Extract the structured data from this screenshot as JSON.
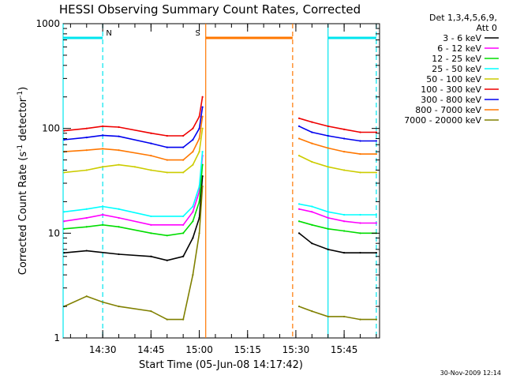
{
  "chart_data": {
    "type": "line",
    "title": "HESSI Observing Summary Count Rates, Corrected",
    "xlabel": "Start Time (05-Jun-08 14:17:42)",
    "ylabel": "Corrected Count Rate (s⁻¹ detector⁻¹)",
    "ylabel_parts": {
      "main": "Corrected Count Rate (s",
      "sup1": "-1",
      "mid": " detector",
      "sup2": "-1",
      "end": ")"
    },
    "yscale": "log",
    "xlim": [
      "14:17:42",
      "15:56:00"
    ],
    "ylim": [
      1,
      1000
    ],
    "xticks": [
      "14:30",
      "14:45",
      "15:00",
      "15:15",
      "15:30",
      "15:45"
    ],
    "yticks": [
      "1",
      "10",
      "100",
      "1000"
    ],
    "legend_header": [
      "Det 1,3,4,5,6,9,",
      "Att 0"
    ],
    "legend_position": "right",
    "series": [
      {
        "name": "3 - 6 keV",
        "color": "#000000",
        "points": [
          [
            "14:18",
            6.5
          ],
          [
            "14:25",
            6.8
          ],
          [
            "14:35",
            6.3
          ],
          [
            "14:45",
            6.0
          ],
          [
            "14:50",
            5.5
          ],
          [
            "14:55",
            6.0
          ],
          [
            "14:58",
            9
          ],
          [
            "15:00",
            14
          ],
          [
            "15:01",
            35
          ]
        ],
        "points2": [
          [
            "15:31",
            10
          ],
          [
            "15:35",
            8
          ],
          [
            "15:40",
            7
          ],
          [
            "15:45",
            6.5
          ],
          [
            "15:50",
            6.5
          ],
          [
            "15:55",
            6.5
          ]
        ]
      },
      {
        "name": "6 - 12 keV",
        "color": "#ff00ff",
        "points": [
          [
            "14:18",
            13
          ],
          [
            "14:25",
            14
          ],
          [
            "14:30",
            15
          ],
          [
            "14:35",
            14
          ],
          [
            "14:45",
            12
          ],
          [
            "14:55",
            12
          ],
          [
            "14:58",
            16
          ],
          [
            "15:00",
            25
          ],
          [
            "15:01",
            55
          ]
        ],
        "points2": [
          [
            "15:31",
            17
          ],
          [
            "15:35",
            16
          ],
          [
            "15:40",
            14
          ],
          [
            "15:45",
            13
          ],
          [
            "15:50",
            12.5
          ],
          [
            "15:55",
            12.5
          ]
        ]
      },
      {
        "name": "12 - 25 keV",
        "color": "#00dd00",
        "points": [
          [
            "14:18",
            11
          ],
          [
            "14:25",
            11.5
          ],
          [
            "14:30",
            12
          ],
          [
            "14:35",
            11.5
          ],
          [
            "14:45",
            10
          ],
          [
            "14:50",
            9.5
          ],
          [
            "14:55",
            10
          ],
          [
            "14:58",
            13
          ],
          [
            "15:00",
            20
          ],
          [
            "15:01",
            45
          ]
        ],
        "points2": [
          [
            "15:31",
            13
          ],
          [
            "15:35",
            12
          ],
          [
            "15:40",
            11
          ],
          [
            "15:45",
            10.5
          ],
          [
            "15:50",
            10
          ],
          [
            "15:55",
            10
          ]
        ]
      },
      {
        "name": "25 - 50 keV",
        "color": "#00ffff",
        "points": [
          [
            "14:18",
            16
          ],
          [
            "14:25",
            17
          ],
          [
            "14:30",
            18
          ],
          [
            "14:35",
            17
          ],
          [
            "14:45",
            14.5
          ],
          [
            "14:55",
            14.5
          ],
          [
            "14:58",
            18
          ],
          [
            "15:00",
            28
          ],
          [
            "15:01",
            60
          ]
        ],
        "points2": [
          [
            "15:31",
            19
          ],
          [
            "15:35",
            18
          ],
          [
            "15:40",
            16
          ],
          [
            "15:45",
            15
          ],
          [
            "15:50",
            15
          ],
          [
            "15:55",
            15
          ]
        ]
      },
      {
        "name": "50 - 100 keV",
        "color": "#cccc00",
        "points": [
          [
            "14:18",
            38
          ],
          [
            "14:25",
            40
          ],
          [
            "14:30",
            43
          ],
          [
            "14:35",
            45
          ],
          [
            "14:40",
            43
          ],
          [
            "14:45",
            40
          ],
          [
            "14:50",
            38
          ],
          [
            "14:55",
            38
          ],
          [
            "14:58",
            45
          ],
          [
            "15:00",
            60
          ],
          [
            "15:01",
            100
          ]
        ],
        "points2": [
          [
            "15:31",
            55
          ],
          [
            "15:35",
            48
          ],
          [
            "15:40",
            43
          ],
          [
            "15:45",
            40
          ],
          [
            "15:50",
            38
          ],
          [
            "15:55",
            38
          ]
        ]
      },
      {
        "name": "100 - 300 keV",
        "color": "#ee0000",
        "points": [
          [
            "14:18",
            95
          ],
          [
            "14:25",
            100
          ],
          [
            "14:30",
            105
          ],
          [
            "14:35",
            103
          ],
          [
            "14:45",
            90
          ],
          [
            "14:50",
            85
          ],
          [
            "14:55",
            85
          ],
          [
            "14:58",
            100
          ],
          [
            "15:00",
            130
          ],
          [
            "15:01",
            200
          ]
        ],
        "points2": [
          [
            "15:31",
            125
          ],
          [
            "15:35",
            115
          ],
          [
            "15:40",
            105
          ],
          [
            "15:45",
            98
          ],
          [
            "15:50",
            92
          ],
          [
            "15:55",
            92
          ]
        ]
      },
      {
        "name": "300 - 800 keV",
        "color": "#0000ee",
        "points": [
          [
            "14:18",
            78
          ],
          [
            "14:25",
            82
          ],
          [
            "14:30",
            86
          ],
          [
            "14:35",
            84
          ],
          [
            "14:45",
            72
          ],
          [
            "14:50",
            66
          ],
          [
            "14:55",
            66
          ],
          [
            "14:58",
            78
          ],
          [
            "15:00",
            100
          ],
          [
            "15:01",
            160
          ]
        ],
        "points2": [
          [
            "15:31",
            105
          ],
          [
            "15:35",
            92
          ],
          [
            "15:40",
            85
          ],
          [
            "15:45",
            80
          ],
          [
            "15:50",
            76
          ],
          [
            "15:55",
            76
          ]
        ]
      },
      {
        "name": "800 - 7000 keV",
        "color": "#ff7700",
        "points": [
          [
            "14:18",
            60
          ],
          [
            "14:25",
            62
          ],
          [
            "14:30",
            64
          ],
          [
            "14:35",
            62
          ],
          [
            "14:45",
            55
          ],
          [
            "14:50",
            50
          ],
          [
            "14:55",
            50
          ],
          [
            "14:58",
            60
          ],
          [
            "15:00",
            80
          ],
          [
            "15:01",
            130
          ]
        ],
        "points2": [
          [
            "15:31",
            80
          ],
          [
            "15:35",
            72
          ],
          [
            "15:40",
            65
          ],
          [
            "15:45",
            60
          ],
          [
            "15:50",
            57
          ],
          [
            "15:55",
            57
          ]
        ]
      },
      {
        "name": "7000 - 20000 keV",
        "color": "#808000",
        "points": [
          [
            "14:18",
            2
          ],
          [
            "14:25",
            2.5
          ],
          [
            "14:30",
            2.2
          ],
          [
            "14:35",
            2
          ],
          [
            "14:45",
            1.8
          ],
          [
            "14:50",
            1.5
          ],
          [
            "14:55",
            1.5
          ],
          [
            "14:58",
            4
          ],
          [
            "15:00",
            10
          ],
          [
            "15:01",
            28
          ]
        ],
        "points2": [
          [
            "15:31",
            2
          ],
          [
            "15:35",
            1.8
          ],
          [
            "15:40",
            1.6
          ],
          [
            "15:45",
            1.6
          ],
          [
            "15:50",
            1.5
          ],
          [
            "15:55",
            1.5
          ]
        ]
      }
    ],
    "annotations": [
      {
        "label": "N",
        "color": "#00e5ee",
        "solid_bars": [
          [
            "14:17:42",
            "14:30"
          ],
          [
            "15:40",
            "15:55"
          ]
        ],
        "dashed_at": [
          "14:30",
          "15:55"
        ],
        "solid_at": [
          "14:17:42",
          "15:40"
        ]
      },
      {
        "label": "S",
        "color": "#ff7700",
        "solid_bars": [
          [
            "15:02",
            "15:29"
          ]
        ],
        "solid_at": [
          "15:02"
        ],
        "dashed_at": [
          "15:29"
        ]
      }
    ],
    "grid": false
  },
  "footer": {
    "timestamp": "30-Nov-2009 12:14"
  }
}
